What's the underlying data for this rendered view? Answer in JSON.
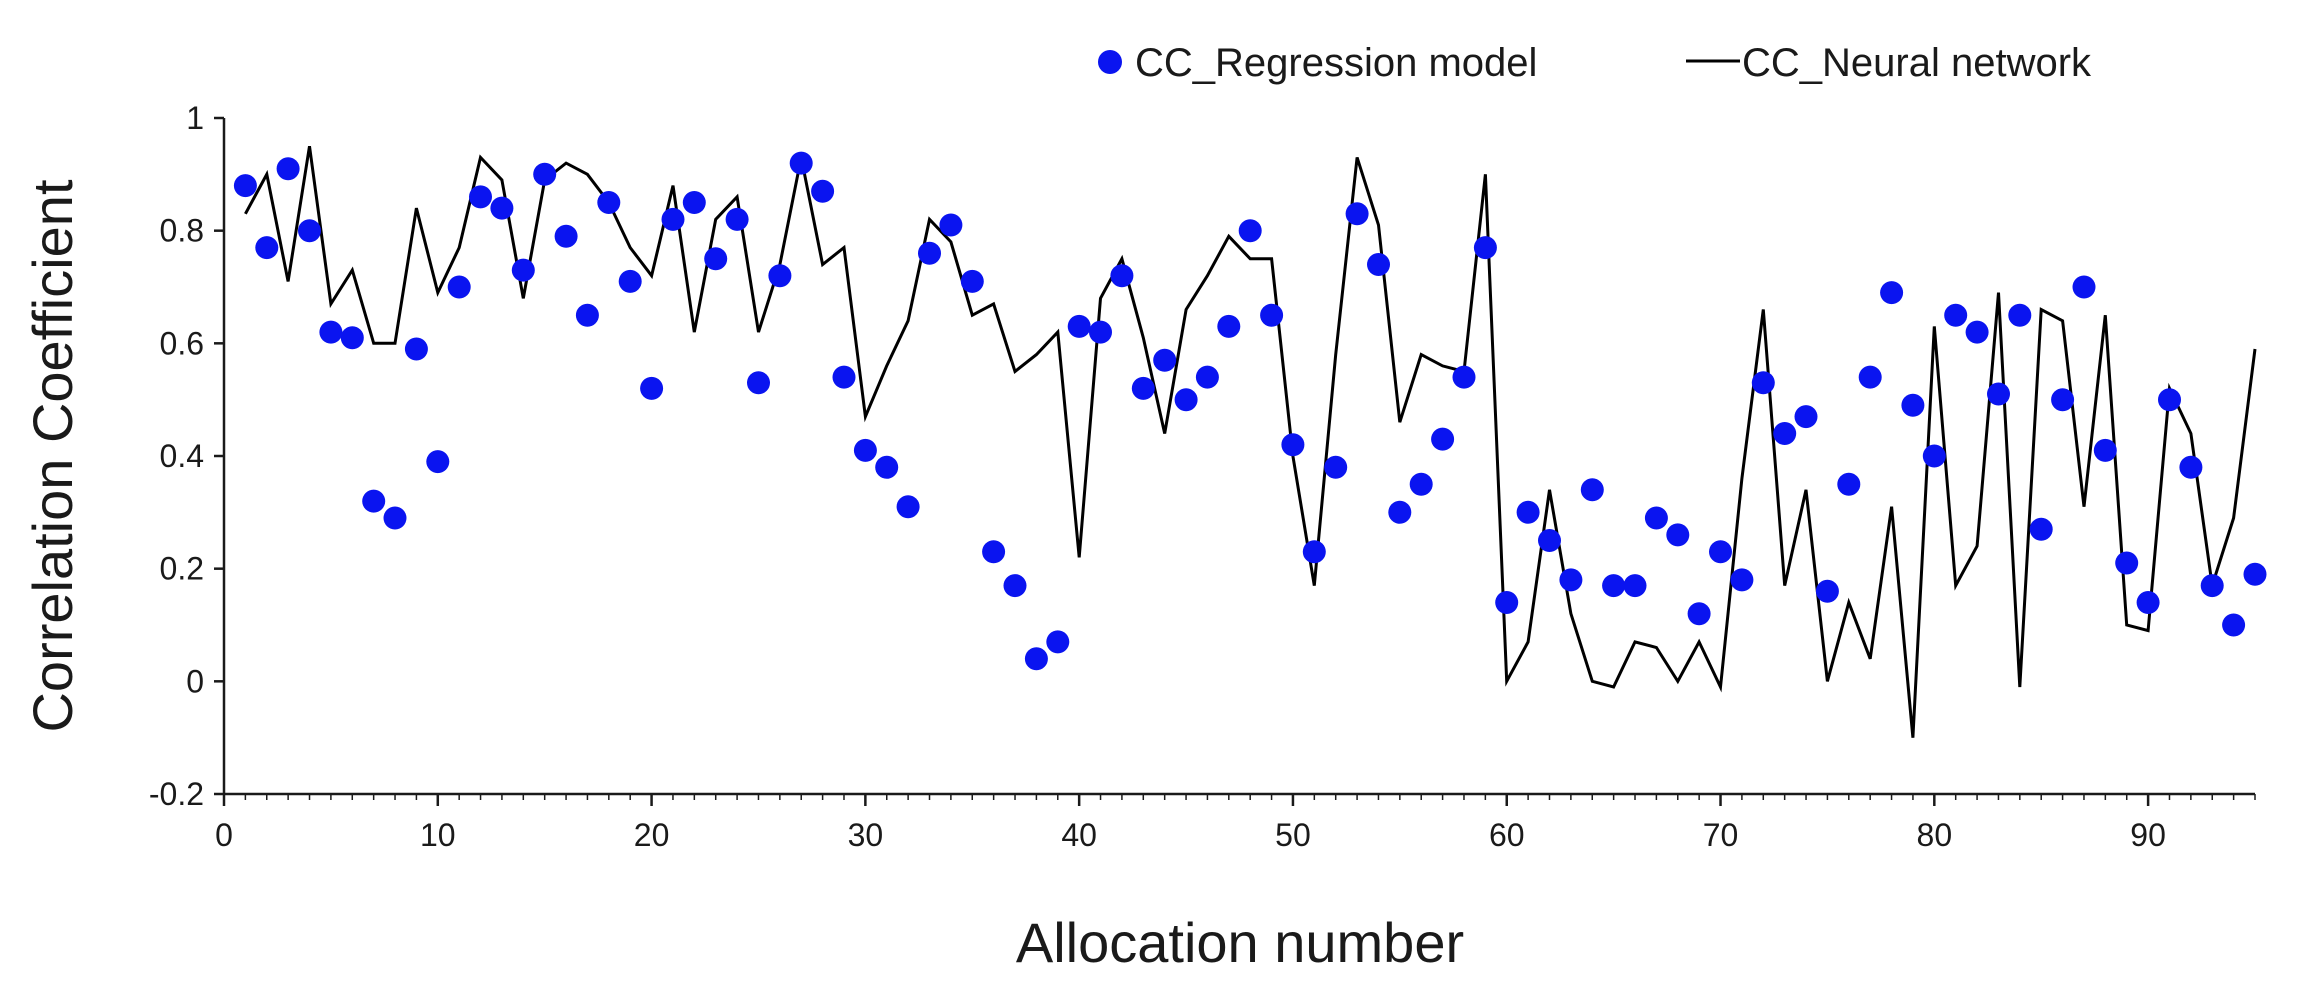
{
  "chart_data": {
    "type": "scatter+line",
    "title": "",
    "xlabel": "Allocation number",
    "ylabel": "Correlation Coefficient",
    "xlim": [
      0,
      95
    ],
    "ylim": [
      -0.2,
      1
    ],
    "xticks": [
      0,
      10,
      20,
      30,
      40,
      50,
      60,
      70,
      80,
      90
    ],
    "yticks": [
      -0.2,
      0,
      0.2,
      0.4,
      0.6,
      0.8,
      1
    ],
    "ytick_labels": [
      "-0.2",
      "0",
      "0.2",
      "0.4",
      "0.6",
      "0.8",
      "1"
    ],
    "grid": false,
    "legend_position": "top-right",
    "x": [
      1,
      2,
      3,
      4,
      5,
      6,
      7,
      8,
      9,
      10,
      11,
      12,
      13,
      14,
      15,
      16,
      17,
      18,
      19,
      20,
      21,
      22,
      23,
      24,
      25,
      26,
      27,
      28,
      29,
      30,
      31,
      32,
      33,
      34,
      35,
      36,
      37,
      38,
      39,
      40,
      41,
      42,
      43,
      44,
      45,
      46,
      47,
      48,
      49,
      50,
      51,
      52,
      53,
      54,
      55,
      56,
      57,
      58,
      59,
      60,
      61,
      62,
      63,
      64,
      65,
      66,
      67,
      68,
      69,
      70,
      71,
      72,
      73,
      74,
      75,
      76,
      77,
      78,
      79,
      80,
      81,
      82,
      83,
      84,
      85,
      86,
      87,
      88,
      89,
      90,
      91,
      92,
      93,
      94,
      95
    ],
    "series": [
      {
        "name": "CC_Regression model",
        "kind": "scatter",
        "color": "#0a14f0",
        "values": [
          0.88,
          0.77,
          0.91,
          0.8,
          0.62,
          0.61,
          0.32,
          0.29,
          0.59,
          0.39,
          0.7,
          0.86,
          0.84,
          0.73,
          0.9,
          0.79,
          0.65,
          0.85,
          0.71,
          0.52,
          0.82,
          0.85,
          0.75,
          0.82,
          0.53,
          0.72,
          0.92,
          0.87,
          0.54,
          0.41,
          0.38,
          0.31,
          0.76,
          0.81,
          0.71,
          0.23,
          0.17,
          0.04,
          0.07,
          0.63,
          0.62,
          0.72,
          0.52,
          0.57,
          0.5,
          0.54,
          0.63,
          0.8,
          0.65,
          0.42,
          0.23,
          0.38,
          0.83,
          0.74,
          0.3,
          0.35,
          0.43,
          0.54,
          0.77,
          0.14,
          0.3,
          0.25,
          0.18,
          0.34,
          0.17,
          0.17,
          0.29,
          0.26,
          0.12,
          0.23,
          0.18,
          0.53,
          0.44,
          0.47,
          0.16,
          0.35,
          0.54,
          0.69,
          0.49,
          0.4,
          0.65,
          0.62,
          0.51,
          0.65,
          0.27,
          0.5,
          0.7,
          0.41,
          0.21,
          0.14,
          0.5,
          0.38,
          0.17,
          0.1,
          0.19
        ]
      },
      {
        "name": "CC_Neural network",
        "kind": "line",
        "color": "#000000",
        "values": [
          0.83,
          0.9,
          0.71,
          0.95,
          0.67,
          0.73,
          0.6,
          0.6,
          0.84,
          0.69,
          0.77,
          0.93,
          0.89,
          0.68,
          0.89,
          0.92,
          0.9,
          0.85,
          0.77,
          0.72,
          0.88,
          0.62,
          0.82,
          0.86,
          0.62,
          0.74,
          0.93,
          0.74,
          0.77,
          0.47,
          0.56,
          0.64,
          0.82,
          0.78,
          0.65,
          0.67,
          0.55,
          0.58,
          0.62,
          0.22,
          0.68,
          0.75,
          0.61,
          0.44,
          0.66,
          0.72,
          0.79,
          0.75,
          0.75,
          0.4,
          0.17,
          0.58,
          0.93,
          0.81,
          0.46,
          0.58,
          0.56,
          0.55,
          0.9,
          0.0,
          0.07,
          0.34,
          0.12,
          0.0,
          -0.01,
          0.07,
          0.06,
          0.0,
          0.07,
          -0.01,
          0.36,
          0.66,
          0.17,
          0.34,
          0.0,
          0.14,
          0.04,
          0.31,
          -0.1,
          0.63,
          0.17,
          0.24,
          0.69,
          -0.01,
          0.66,
          0.64,
          0.31,
          0.65,
          0.1,
          0.09,
          0.52,
          0.44,
          0.17,
          0.29,
          0.59
        ]
      }
    ]
  }
}
